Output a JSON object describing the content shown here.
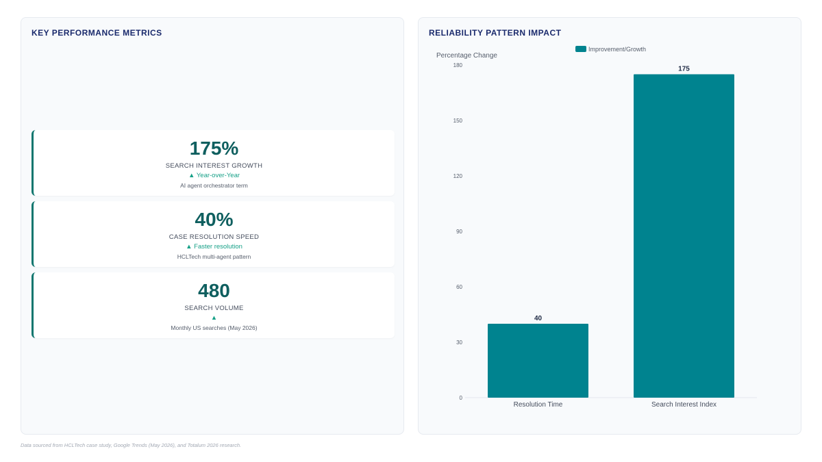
{
  "left_panel": {
    "title": "KEY PERFORMANCE METRICS",
    "metrics": [
      {
        "value": "175%",
        "label": "SEARCH INTEREST GROWTH",
        "trend": "▲ Year-over-Year",
        "note": "AI agent orchestrator term"
      },
      {
        "value": "40%",
        "label": "CASE RESOLUTION SPEED",
        "trend": "▲ Faster resolution",
        "note": "HCLTech multi-agent pattern"
      },
      {
        "value": "480",
        "label": "SEARCH VOLUME",
        "trend": "▲",
        "note": "Monthly US searches (May 2026)"
      }
    ]
  },
  "right_panel": {
    "title": "RELIABILITY PATTERN IMPACT"
  },
  "chart_data": {
    "type": "bar",
    "title": "RELIABILITY PATTERN IMPACT",
    "categories": [
      "Resolution Time",
      "Search Interest Index"
    ],
    "series": [
      {
        "name": "Improvement/Growth",
        "values": [
          40,
          175
        ],
        "color": "#00838f"
      }
    ],
    "data_labels": [
      "40",
      "175"
    ],
    "xlabel": "",
    "ylabel": "Percentage Change",
    "ylim": [
      0,
      180
    ],
    "yticks": [
      0,
      30,
      60,
      90,
      120,
      150,
      180
    ],
    "legend": "top-center",
    "grid": false
  },
  "footnote": "Data sourced from HCLTech case study, Google Trends (May 2026), and Totalum 2026 research.",
  "colors": {
    "accent": "#0f766e",
    "bar": "#00838f",
    "trend": "#16a087",
    "title": "#1a2a6c"
  }
}
